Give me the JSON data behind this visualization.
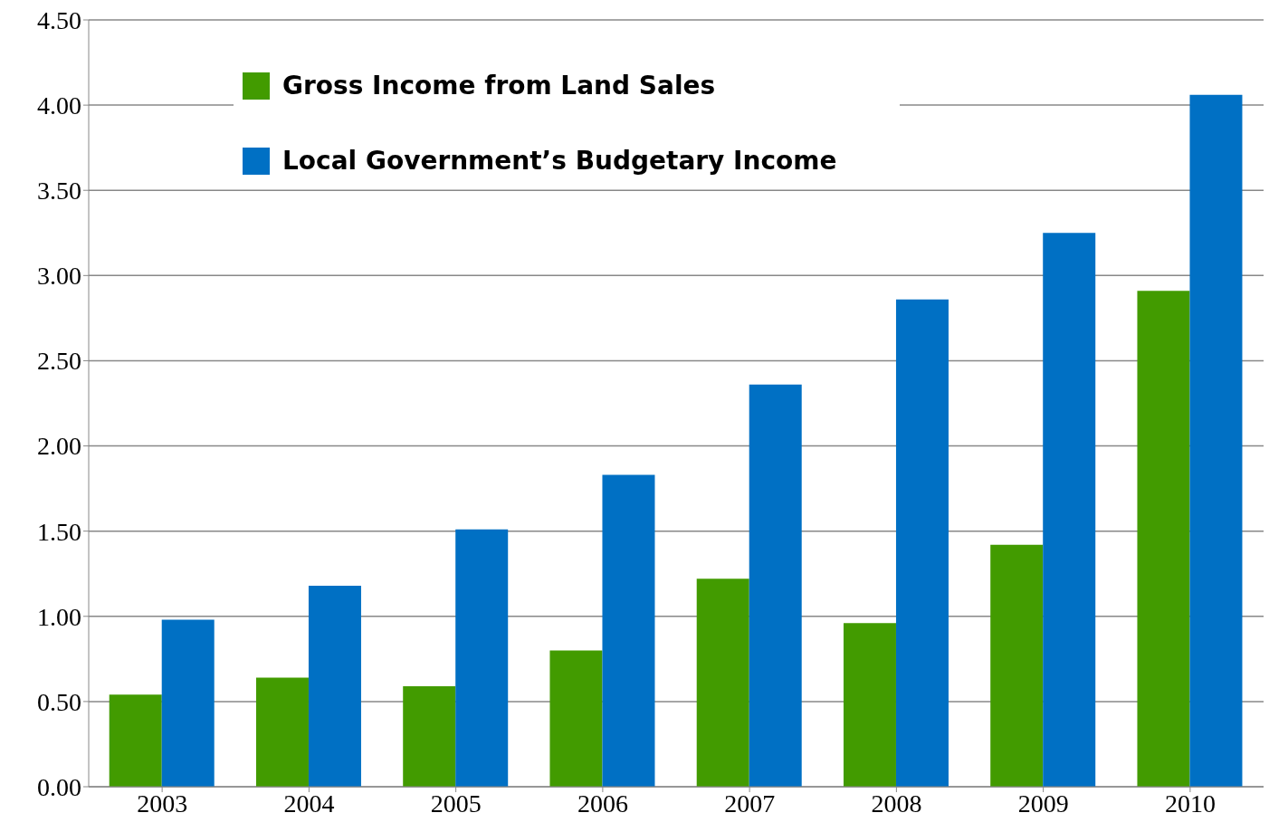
{
  "chart_data": {
    "type": "bar",
    "categories": [
      "2003",
      "2004",
      "2005",
      "2006",
      "2007",
      "2008",
      "2009",
      "2010"
    ],
    "series": [
      {
        "name": "Gross Income from Land Sales",
        "color": "#429b00",
        "values": [
          0.54,
          0.64,
          0.59,
          0.8,
          1.22,
          0.96,
          1.42,
          2.91
        ]
      },
      {
        "name": "Local Government’s Budgetary Income",
        "color": "#0070c4",
        "values": [
          0.98,
          1.18,
          1.51,
          1.83,
          2.36,
          2.86,
          3.25,
          4.06
        ]
      }
    ],
    "ylim": [
      0,
      4.5
    ],
    "yticks": [
      {
        "value": 0,
        "label": "0.00"
      },
      {
        "value": 0.5,
        "label": "0.50"
      },
      {
        "value": 1,
        "label": "1.00"
      },
      {
        "value": 1.5,
        "label": "1.50"
      },
      {
        "value": 2,
        "label": "2.00"
      },
      {
        "value": 2.5,
        "label": "2.50"
      },
      {
        "value": 3,
        "label": "3.00"
      },
      {
        "value": 3.5,
        "label": "3.50"
      },
      {
        "value": 4,
        "label": "4.00"
      },
      {
        "value": 4.5,
        "label": "4.50"
      }
    ],
    "grid": "y",
    "legend": "top left"
  }
}
